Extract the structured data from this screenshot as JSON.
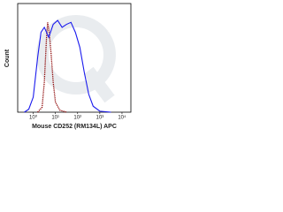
{
  "chart_data": {
    "type": "line",
    "y_label": "Count",
    "x_label": "Mouse CD252 (RM134L) APC",
    "xlim": [
      -0.7,
      4.4
    ],
    "ylim": [
      0,
      100
    ],
    "xticks": [
      {
        "value": 0,
        "label": "10⁰"
      },
      {
        "value": 1,
        "label": "10¹"
      },
      {
        "value": 2,
        "label": "10²"
      },
      {
        "value": 3,
        "label": "10³"
      },
      {
        "value": 4,
        "label": "10⁴"
      }
    ],
    "series": [
      {
        "color": "#8b0000",
        "dash": true,
        "x": [
          0.2,
          0.4,
          0.5,
          0.6,
          0.65,
          0.72,
          0.8,
          0.9,
          1.0,
          1.2,
          1.5
        ],
        "values": [
          0,
          5,
          30,
          75,
          90,
          80,
          60,
          30,
          10,
          2,
          0
        ]
      },
      {
        "color": "#1a1aee",
        "dash": false,
        "x": [
          -0.4,
          -0.2,
          0,
          0.2,
          0.35,
          0.5,
          0.7,
          0.9,
          1.1,
          1.3,
          1.5,
          1.7,
          1.9,
          2.1,
          2.3,
          2.5,
          2.7,
          3.0,
          3.5
        ],
        "values": [
          0,
          3,
          15,
          55,
          80,
          85,
          75,
          88,
          92,
          85,
          88,
          90,
          80,
          65,
          40,
          18,
          6,
          1,
          0
        ]
      }
    ]
  }
}
